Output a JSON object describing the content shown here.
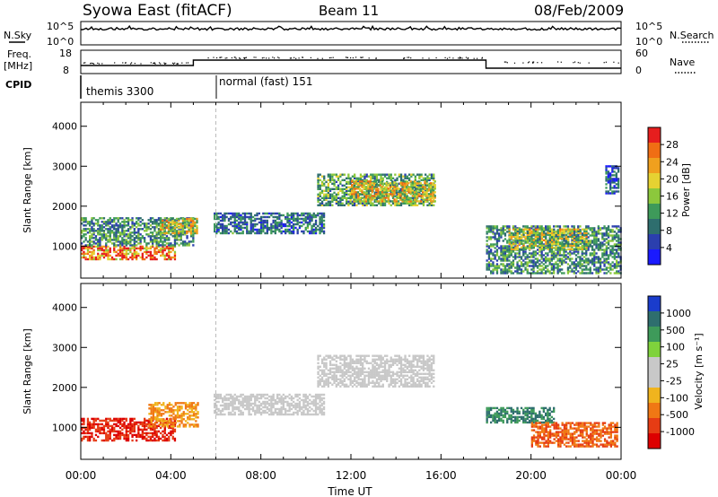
{
  "header": {
    "title": "Syowa East (fitACF)",
    "beam": "Beam 11",
    "date": "08/Feb/2009"
  },
  "nsky_panel": {
    "left_label": "N.Sky",
    "left_ticks": [
      "10^5",
      "10^0"
    ],
    "right_label": "N.Search",
    "right_ticks": [
      "10^5",
      "10^0"
    ]
  },
  "freq_panel": {
    "left_label_line1": "Freq.",
    "left_label_line2": "[MHz]",
    "left_ticks": [
      "18",
      "8"
    ],
    "right_label": "Nave",
    "right_ticks": [
      "60",
      "0"
    ]
  },
  "cpid_panel": {
    "label": "CPID",
    "modes": [
      {
        "name": "themis 3300",
        "start_hour": 0
      },
      {
        "name": "normal (fast) 151",
        "start_hour": 6
      }
    ]
  },
  "colors": {
    "power_scale": [
      "#1a1aff",
      "#2b3fae",
      "#2e6e6e",
      "#3e9a5a",
      "#8cc83c",
      "#e6d232",
      "#f0a01e",
      "#f06e14",
      "#e61e1e"
    ],
    "velocity_scale": [
      "#1a3ccc",
      "#2e6e6e",
      "#3e9a5a",
      "#7fd23c",
      "#c8c8c8",
      "#c8c8c8",
      "#f0b41e",
      "#f07814",
      "#e63c14",
      "#dd0000"
    ],
    "ground_scatter": "#c8c8c8"
  },
  "chart_data": [
    {
      "type": "heatmap",
      "name": "power",
      "ylabel": "Slant Range [km]",
      "yticks": [
        "1000",
        "2000",
        "3000",
        "4000"
      ],
      "ylim": [
        200,
        4600
      ],
      "xlim": [
        0,
        24
      ],
      "colorbar_label": "Power [dB]",
      "colorbar_ticks": [
        "4",
        "8",
        "12",
        "16",
        "20",
        "24",
        "28"
      ],
      "colorbar_range": [
        0,
        30
      ],
      "features": [
        {
          "t0": 0.0,
          "t1": 4.2,
          "r0": 650,
          "r1": 1000,
          "value": 24
        },
        {
          "t0": 0.0,
          "t1": 5.0,
          "r0": 1000,
          "r1": 1700,
          "value": 10
        },
        {
          "t0": 3.5,
          "t1": 5.2,
          "r0": 1300,
          "r1": 1700,
          "value": 18
        },
        {
          "t0": 5.9,
          "t1": 10.8,
          "r0": 1300,
          "r1": 1800,
          "value": 8
        },
        {
          "t0": 10.5,
          "t1": 15.7,
          "r0": 2000,
          "r1": 2800,
          "value": 12
        },
        {
          "t0": 12.0,
          "t1": 15.7,
          "r0": 2100,
          "r1": 2600,
          "value": 18
        },
        {
          "t0": 18.0,
          "t1": 24.0,
          "r0": 300,
          "r1": 1500,
          "value": 10
        },
        {
          "t0": 19.0,
          "t1": 22.5,
          "r0": 900,
          "r1": 1400,
          "value": 16
        },
        {
          "t0": 23.3,
          "t1": 23.9,
          "r0": 2300,
          "r1": 3000,
          "value": 6
        }
      ]
    },
    {
      "type": "heatmap",
      "name": "velocity",
      "ylabel": "Slant Range [km]",
      "yticks": [
        "1000",
        "2000",
        "3000",
        "4000"
      ],
      "ylim": [
        200,
        4600
      ],
      "xlim": [
        0,
        24
      ],
      "xlabel": "Time UT",
      "xticks": [
        "00:00",
        "04:00",
        "08:00",
        "12:00",
        "16:00",
        "20:00",
        "00:00"
      ],
      "colorbar_label": "Velocity [m s⁻¹]",
      "colorbar_ticks": [
        "1000",
        "500",
        "100",
        "25",
        "-25",
        "-100",
        "-500",
        "-1000"
      ],
      "features": [
        {
          "t0": 0.0,
          "t1": 4.2,
          "r0": 650,
          "r1": 1200,
          "value": -500
        },
        {
          "t0": 3.0,
          "t1": 5.2,
          "r0": 1000,
          "r1": 1600,
          "value": -100
        },
        {
          "t0": 5.9,
          "t1": 10.8,
          "r0": 1300,
          "r1": 1800,
          "value": 0
        },
        {
          "t0": 10.5,
          "t1": 15.7,
          "r0": 2000,
          "r1": 2800,
          "value": 0
        },
        {
          "t0": 18.0,
          "t1": 21.0,
          "r0": 1100,
          "r1": 1500,
          "value": 500
        },
        {
          "t0": 20.0,
          "t1": 23.8,
          "r0": 500,
          "r1": 1100,
          "value": -300
        }
      ]
    }
  ]
}
